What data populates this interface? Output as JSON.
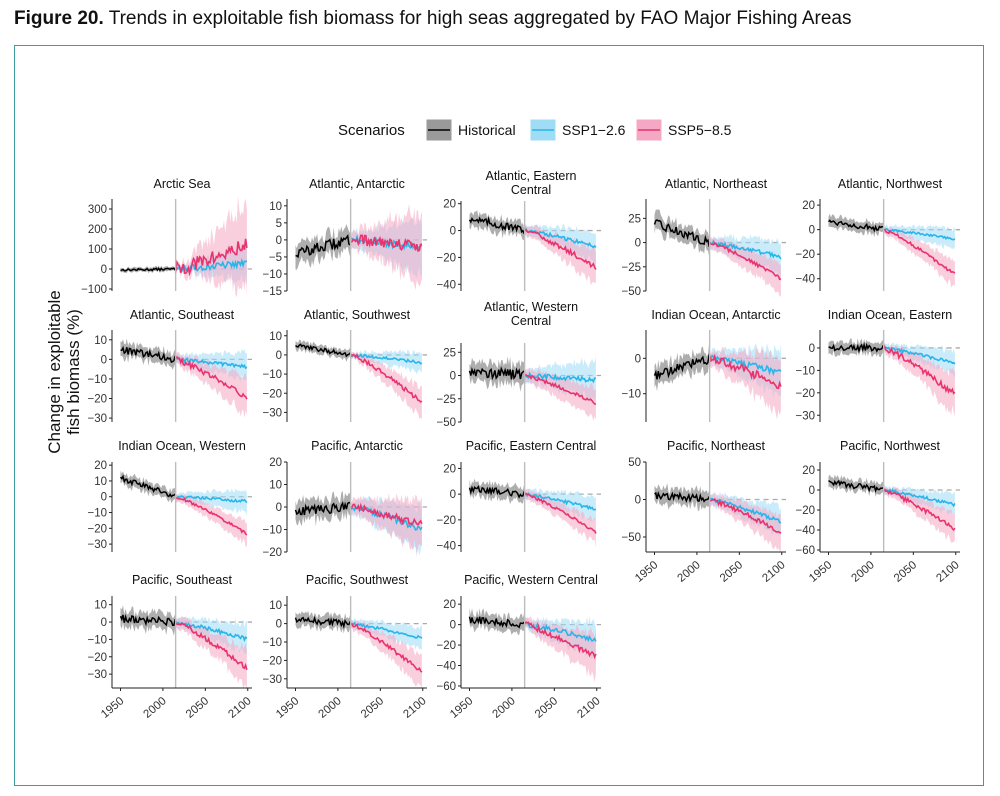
{
  "figure": {
    "label": "Figure 20.",
    "title": "Trends in exploitable fish biomass for high seas aggregated by FAO Major Fishing Areas",
    "frame_color": "#3a9c9c"
  },
  "chart_data": {
    "type": "line",
    "ylabel_lines": [
      "Change in exploitable",
      "fish biomass (%)"
    ],
    "legend": {
      "title": "Scenarios",
      "placement": "top-center",
      "entries": [
        {
          "key": "historical",
          "label": "Historical",
          "color": "#000000",
          "fill": "#9a9a9a"
        },
        {
          "key": "ssp126",
          "label": "SSP1−2.6",
          "color": "#29b5ea",
          "fill": "#9fdcf6"
        },
        {
          "key": "ssp585",
          "label": "SSP5−8.5",
          "color": "#e8336d",
          "fill": "#f4a8c3"
        }
      ]
    },
    "x_ticks": [
      1950,
      2000,
      2050,
      2100
    ],
    "xlim": [
      1940,
      2105
    ],
    "reference_year": 2015,
    "historical_period": [
      1950,
      2015
    ],
    "projection_period": [
      2015,
      2100
    ],
    "panels": [
      {
        "title": "Arctic Sea",
        "ylim": [
          -110,
          350
        ],
        "yticks": [
          -100,
          0,
          100,
          200,
          300
        ],
        "hist": [
          [
            1950,
            -5
          ],
          [
            2015,
            0
          ]
        ],
        "ssp126_end": 30,
        "ssp585_end": 120,
        "hist_band": 12,
        "band_end_126": 90,
        "band_end_585": 220
      },
      {
        "title": "Atlantic, Antarctic",
        "ylim": [
          -15,
          12
        ],
        "yticks": [
          -15,
          -10,
          -5,
          0,
          5,
          10
        ],
        "hist": [
          [
            1950,
            -4
          ],
          [
            2015,
            0
          ]
        ],
        "ssp126_end": -2,
        "ssp585_end": -2,
        "hist_band": 3.5,
        "band_end_126": 6,
        "band_end_585": 9
      },
      {
        "title": "Atlantic, Eastern Central",
        "ylim": [
          -45,
          22
        ],
        "yticks": [
          -40,
          -20,
          0,
          20
        ],
        "hist": [
          [
            1950,
            9
          ],
          [
            2015,
            0
          ]
        ],
        "ssp126_end": -12,
        "ssp585_end": -28,
        "hist_band": 6,
        "band_end_126": 8,
        "band_end_585": 10
      },
      {
        "title": "Atlantic, Northeast",
        "ylim": [
          -50,
          45
        ],
        "yticks": [
          -50,
          -25,
          0,
          25
        ],
        "hist": [
          [
            1950,
            20
          ],
          [
            2015,
            0
          ]
        ],
        "ssp126_end": -15,
        "ssp585_end": -38,
        "hist_band": 10,
        "band_end_126": 12,
        "band_end_585": 10
      },
      {
        "title": "Atlantic, Northwest",
        "ylim": [
          -50,
          25
        ],
        "yticks": [
          -40,
          -20,
          0,
          20
        ],
        "hist": [
          [
            1950,
            7
          ],
          [
            2015,
            0
          ]
        ],
        "ssp126_end": -8,
        "ssp585_end": -37,
        "hist_band": 5,
        "band_end_126": 6,
        "band_end_585": 8
      },
      {
        "title": "Atlantic, Southeast",
        "ylim": [
          -32,
          15
        ],
        "yticks": [
          -30,
          -20,
          -10,
          0,
          10
        ],
        "hist": [
          [
            1950,
            5
          ],
          [
            2015,
            0
          ]
        ],
        "ssp126_end": -4,
        "ssp585_end": -20,
        "hist_band": 4,
        "band_end_126": 5,
        "band_end_585": 8
      },
      {
        "title": "Atlantic, Southwest",
        "ylim": [
          -35,
          13
        ],
        "yticks": [
          -30,
          -20,
          -10,
          0,
          10
        ],
        "hist": [
          [
            1950,
            5
          ],
          [
            2015,
            0
          ]
        ],
        "ssp126_end": -4,
        "ssp585_end": -25,
        "hist_band": 2.5,
        "band_end_126": 4,
        "band_end_585": 7
      },
      {
        "title": "Atlantic, Western Central",
        "ylim": [
          -50,
          35
        ],
        "yticks": [
          -50,
          -25,
          0,
          25
        ],
        "hist": [
          [
            1950,
            5
          ],
          [
            2015,
            0
          ]
        ],
        "ssp126_end": -5,
        "ssp585_end": -30,
        "hist_band": 12,
        "band_end_126": 14,
        "band_end_585": 10
      },
      {
        "title": "Indian Ocean, Antarctic",
        "ylim": [
          -18,
          8
        ],
        "yticks": [
          -10,
          0
        ],
        "hist": [
          [
            1950,
            -5
          ],
          [
            2015,
            0
          ]
        ],
        "ssp126_end": -4,
        "ssp585_end": -8,
        "hist_band": 3,
        "band_end_126": 5,
        "band_end_585": 7
      },
      {
        "title": "Indian Ocean, Eastern",
        "ylim": [
          -33,
          8
        ],
        "yticks": [
          -30,
          -20,
          -10,
          0
        ],
        "hist": [
          [
            1950,
            0
          ],
          [
            2015,
            0
          ]
        ],
        "ssp126_end": -7,
        "ssp585_end": -21,
        "hist_band": 3,
        "band_end_126": 4,
        "band_end_585": 8
      },
      {
        "title": "Indian Ocean, Western",
        "ylim": [
          -35,
          22
        ],
        "yticks": [
          -30,
          -20,
          -10,
          0,
          10,
          20
        ],
        "hist": [
          [
            1950,
            12
          ],
          [
            2015,
            0
          ]
        ],
        "ssp126_end": -3,
        "ssp585_end": -24,
        "hist_band": 4,
        "band_end_126": 5,
        "band_end_585": 5
      },
      {
        "title": "Pacific, Antarctic",
        "ylim": [
          -20,
          20
        ],
        "yticks": [
          -20,
          -10,
          0,
          10,
          20
        ],
        "hist": [
          [
            1950,
            -2
          ],
          [
            2015,
            0
          ]
        ],
        "ssp126_end": -10,
        "ssp585_end": -8,
        "hist_band": 5,
        "band_end_126": 8,
        "band_end_585": 9
      },
      {
        "title": "Pacific, Eastern Central",
        "ylim": [
          -45,
          25
        ],
        "yticks": [
          -40,
          -20,
          0,
          20
        ],
        "hist": [
          [
            1950,
            4
          ],
          [
            2015,
            0
          ]
        ],
        "ssp126_end": -12,
        "ssp585_end": -30,
        "hist_band": 6,
        "band_end_126": 7,
        "band_end_585": 6
      },
      {
        "title": "Pacific, Northeast",
        "ylim": [
          -70,
          50
        ],
        "yticks": [
          -50,
          0,
          50
        ],
        "hist": [
          [
            1950,
            5
          ],
          [
            2015,
            0
          ]
        ],
        "ssp126_end": -30,
        "ssp585_end": -45,
        "hist_band": 12,
        "band_end_126": 14,
        "band_end_585": 18
      },
      {
        "title": "Pacific, Northwest",
        "ylim": [
          -62,
          28
        ],
        "yticks": [
          -60,
          -40,
          -20,
          0,
          20
        ],
        "hist": [
          [
            1950,
            8
          ],
          [
            2015,
            0
          ]
        ],
        "ssp126_end": -15,
        "ssp585_end": -40,
        "hist_band": 6,
        "band_end_126": 8,
        "band_end_585": 12
      },
      {
        "title": "Pacific, Southeast",
        "ylim": [
          -38,
          15
        ],
        "yticks": [
          -30,
          -20,
          -10,
          0,
          10
        ],
        "hist": [
          [
            1950,
            2
          ],
          [
            2015,
            0
          ]
        ],
        "ssp126_end": -10,
        "ssp585_end": -27,
        "hist_band": 5,
        "band_end_126": 6,
        "band_end_585": 8
      },
      {
        "title": "Pacific, Southwest",
        "ylim": [
          -35,
          15
        ],
        "yticks": [
          -30,
          -20,
          -10,
          0,
          10
        ],
        "hist": [
          [
            1950,
            2
          ],
          [
            2015,
            0
          ]
        ],
        "ssp126_end": -8,
        "ssp585_end": -27,
        "hist_band": 4,
        "band_end_126": 4,
        "band_end_585": 7
      },
      {
        "title": "Pacific, Western Central",
        "ylim": [
          -62,
          28
        ],
        "yticks": [
          -60,
          -40,
          -20,
          0,
          20
        ],
        "hist": [
          [
            1950,
            5
          ],
          [
            2015,
            0
          ]
        ],
        "ssp126_end": -15,
        "ssp585_end": -32,
        "hist_band": 8,
        "band_end_126": 14,
        "band_end_585": 18
      }
    ]
  }
}
